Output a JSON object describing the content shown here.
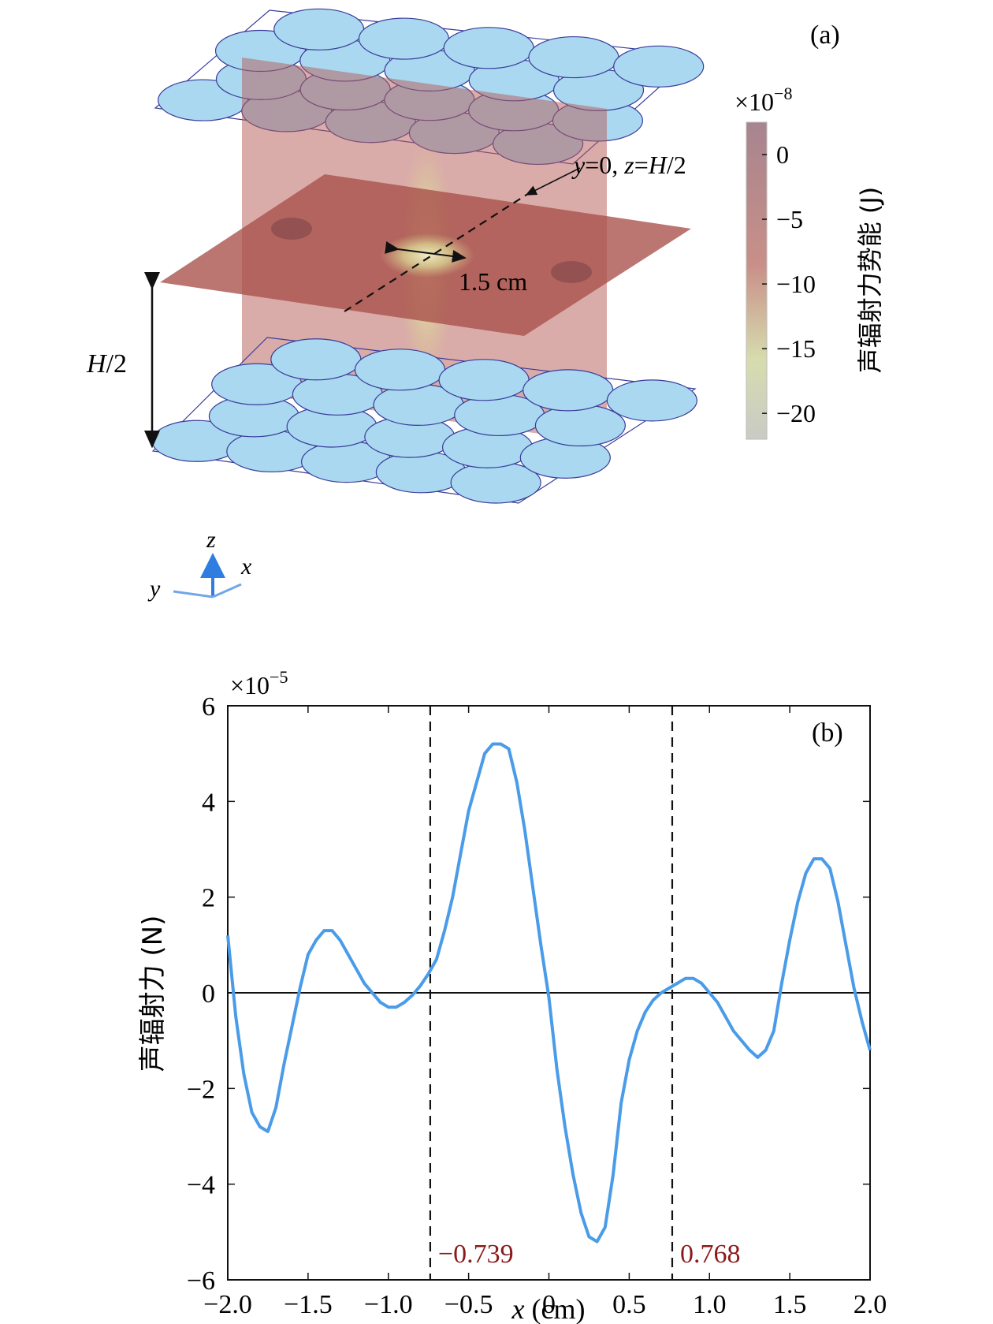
{
  "panel_a": {
    "label": "(a)",
    "colorbar": {
      "exponent_base": "×10",
      "exponent_power": "−8",
      "label": "声辐射力势能 (J)",
      "ticks": [
        "0",
        "−5",
        "−10",
        "−15",
        "−20"
      ],
      "tick_values": [
        0,
        -5,
        -10,
        -15,
        -20
      ],
      "range": [
        -22,
        2.5
      ],
      "colors": [
        "#c9cbc6",
        "#d7dcae",
        "#c98f88",
        "#a7858f"
      ]
    },
    "annotation_plane": {
      "var_y": "y",
      "eq_y": "=0, ",
      "var_z": "z",
      "eq_z": "=",
      "var_h": "H",
      "div": "/2"
    },
    "annotation_width": "1.5 cm",
    "annotation_height": {
      "var_h": "H",
      "div": "/2"
    },
    "axes": {
      "z": "z",
      "x": "x",
      "y": "y"
    },
    "colors": {
      "transducer_fill": "#a9d8f0",
      "transducer_edge": "#3a3c9a",
      "plane": "#b75a55",
      "axis_arrow": "#2f7de1"
    }
  },
  "chart_data": {
    "type": "line",
    "label": "(b)",
    "xlabel_var": "x",
    "xlabel_unit": " (cm)",
    "ylabel": "声辐射力 (N)",
    "y_exponent_base": "×10",
    "y_exponent_power": "−5",
    "xlim": [
      -2.0,
      2.0
    ],
    "ylim": [
      -6,
      6
    ],
    "x_ticks": [
      -2.0,
      -1.5,
      -1.0,
      -0.5,
      0,
      0.5,
      1.0,
      1.5,
      2.0
    ],
    "x_tick_labels": [
      "−2.0",
      "−1.5",
      "−1.0",
      "−0.5",
      "0",
      "0.5",
      "1.0",
      "1.5",
      "2.0"
    ],
    "y_ticks": [
      -6,
      -4,
      -2,
      0,
      2,
      4,
      6
    ],
    "y_tick_labels": [
      "−6",
      "−4",
      "−2",
      "0",
      "2",
      "4",
      "6"
    ],
    "vlines": [
      {
        "x": -0.739,
        "label": "−0.739"
      },
      {
        "x": 0.768,
        "label": "0.768"
      }
    ],
    "line_color": "#4a9be8",
    "annotation_color": "#8b1a1a",
    "series": [
      {
        "x": [
          -2.0,
          -1.95,
          -1.9,
          -1.85,
          -1.8,
          -1.75,
          -1.7,
          -1.65,
          -1.6,
          -1.55,
          -1.5,
          -1.45,
          -1.4,
          -1.35,
          -1.3,
          -1.25,
          -1.2,
          -1.15,
          -1.1,
          -1.05,
          -1.0,
          -0.95,
          -0.9,
          -0.85,
          -0.8,
          -0.75,
          -0.7,
          -0.65,
          -0.6,
          -0.55,
          -0.5,
          -0.45,
          -0.4,
          -0.35,
          -0.3,
          -0.25,
          -0.2,
          -0.15,
          -0.1,
          -0.05,
          0.0,
          0.05,
          0.1,
          0.15,
          0.2,
          0.25,
          0.3,
          0.35,
          0.4,
          0.45,
          0.5,
          0.55,
          0.6,
          0.65,
          0.7,
          0.75,
          0.8,
          0.85,
          0.9,
          0.95,
          1.0,
          1.05,
          1.1,
          1.15,
          1.2,
          1.25,
          1.3,
          1.35,
          1.4,
          1.45,
          1.5,
          1.55,
          1.6,
          1.65,
          1.7,
          1.75,
          1.8,
          1.85,
          1.9,
          1.95,
          2.0
        ],
        "values": [
          1.2,
          -0.5,
          -1.7,
          -2.5,
          -2.8,
          -2.9,
          -2.4,
          -1.5,
          -0.7,
          0.1,
          0.8,
          1.1,
          1.3,
          1.3,
          1.1,
          0.8,
          0.5,
          0.2,
          0.0,
          -0.2,
          -0.3,
          -0.3,
          -0.2,
          -0.05,
          0.15,
          0.4,
          0.7,
          1.3,
          2.0,
          2.9,
          3.8,
          4.4,
          5.0,
          5.2,
          5.2,
          5.1,
          4.4,
          3.4,
          2.2,
          1.0,
          -0.1,
          -1.6,
          -2.8,
          -3.8,
          -4.6,
          -5.1,
          -5.2,
          -4.9,
          -3.8,
          -2.3,
          -1.4,
          -0.8,
          -0.4,
          -0.15,
          0.0,
          0.1,
          0.2,
          0.3,
          0.3,
          0.2,
          0.0,
          -0.2,
          -0.5,
          -0.8,
          -1.0,
          -1.2,
          -1.35,
          -1.2,
          -0.8,
          0.2,
          1.1,
          1.9,
          2.5,
          2.8,
          2.8,
          2.6,
          1.9,
          1.0,
          0.1,
          -0.6,
          -1.2
        ]
      }
    ]
  }
}
